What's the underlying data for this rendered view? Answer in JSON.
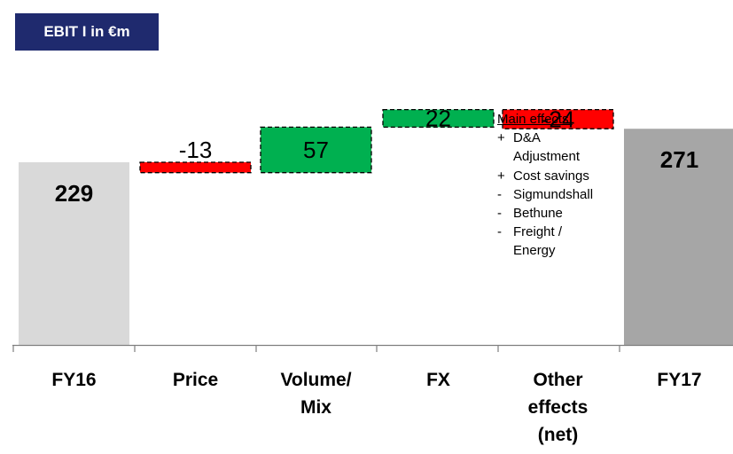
{
  "title": "EBIT I in €m",
  "chart_data": {
    "type": "waterfall",
    "title": "EBIT I in €m",
    "categories": [
      "FY16",
      "Price",
      "Volume/ Mix",
      "FX",
      "Other effects (net)",
      "FY17"
    ],
    "category_lines": [
      [
        "FY16"
      ],
      [
        "Price"
      ],
      [
        "Volume/",
        "Mix"
      ],
      [
        "FX"
      ],
      [
        "Other",
        "effects",
        "(net)"
      ],
      [
        "FY17"
      ]
    ],
    "steps": [
      {
        "category": "FY16",
        "kind": "total",
        "value": 229,
        "label": "229"
      },
      {
        "category": "Price",
        "kind": "delta",
        "value": -13,
        "label": "-13"
      },
      {
        "category": "Volume/ Mix",
        "kind": "delta",
        "value": 57,
        "label": "57"
      },
      {
        "category": "FX",
        "kind": "delta",
        "value": 22,
        "label": "22"
      },
      {
        "category": "Other effects (net)",
        "kind": "delta",
        "value": -24,
        "label": "-24"
      },
      {
        "category": "FY17",
        "kind": "total",
        "value": 271,
        "label": "271"
      }
    ],
    "colors": {
      "start_total": "#d9d9d9",
      "end_total": "#a6a6a6",
      "positive": "#00b050",
      "negative": "#ff0000"
    },
    "ylim": [
      0,
      300
    ],
    "grid": false
  },
  "annotation": {
    "heading": "Main effects:",
    "items": [
      {
        "marker": "+",
        "lines": [
          "D&A",
          "Adjustment"
        ]
      },
      {
        "marker": "+",
        "lines": [
          "Cost savings"
        ]
      },
      {
        "marker": "-",
        "lines": [
          "Sigmundshall"
        ]
      },
      {
        "marker": "-",
        "lines": [
          "Bethune"
        ]
      },
      {
        "marker": "-",
        "lines": [
          "Freight /",
          "Energy"
        ]
      }
    ]
  }
}
